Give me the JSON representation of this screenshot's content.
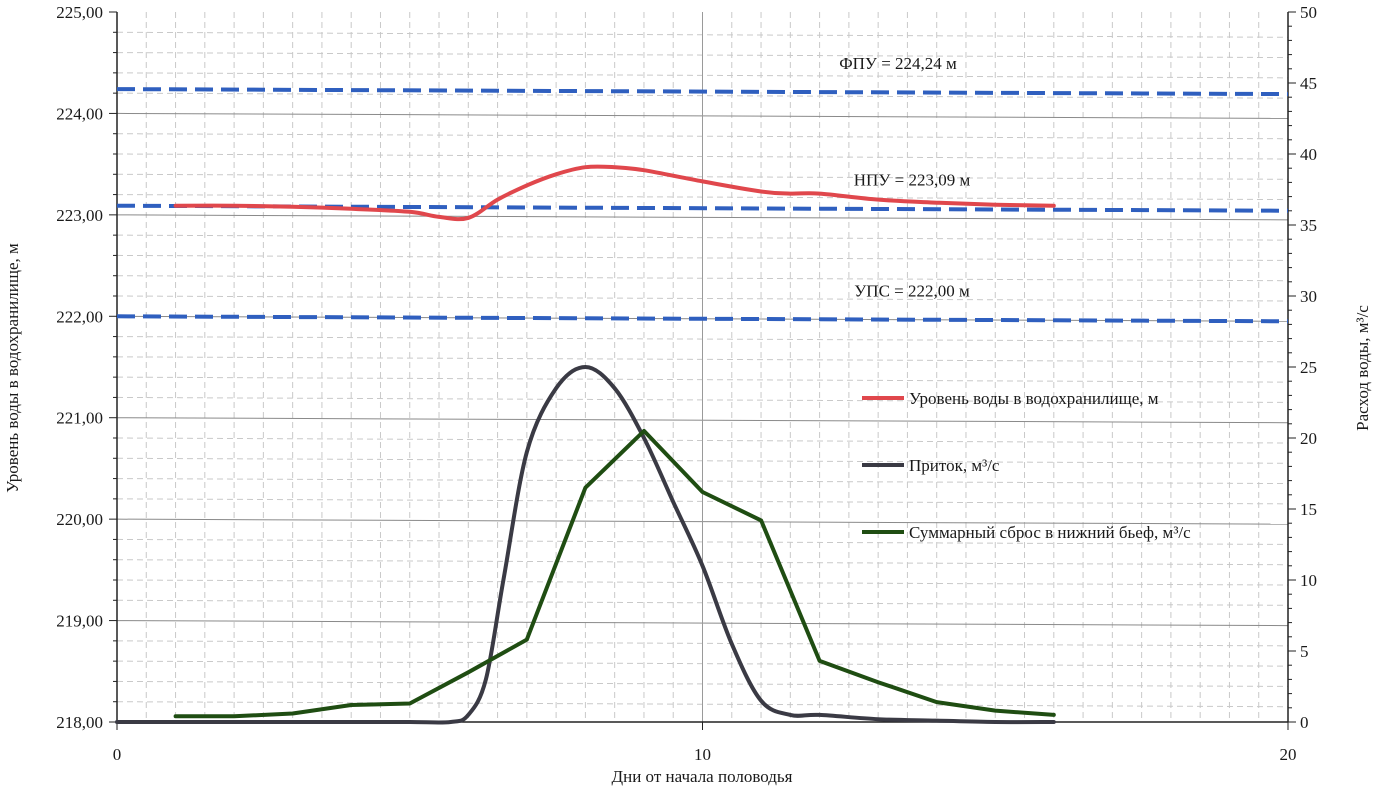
{
  "chart_data": {
    "type": "line",
    "xlabel": "Дни от начала половодья",
    "ylabel_left": "Уровень воды в водохранилище, м",
    "ylabel_right": "Расход воды, м³/с",
    "xlim": [
      0,
      20
    ],
    "ylim_left": [
      218,
      225
    ],
    "ylim_right": [
      0,
      50
    ],
    "x_ticks": [
      "0",
      "10",
      "20"
    ],
    "y_left_ticks": [
      "218,00",
      "219,00",
      "220,00",
      "221,00",
      "222,00",
      "223,00",
      "224,00",
      "225,00"
    ],
    "y_right_ticks": [
      "0",
      "5",
      "10",
      "15",
      "20",
      "25",
      "30",
      "35",
      "40",
      "45",
      "50"
    ],
    "grid": true,
    "legend_placement": "right",
    "reference_lines": [
      {
        "label": "ФПУ = 224,24 м",
        "value": 224.24,
        "color": "#2f5fbf"
      },
      {
        "label": "НПУ = 223,09 м",
        "value": 223.09,
        "color": "#2f5fbf"
      },
      {
        "label": "УПС = 222,00 м",
        "value": 222.0,
        "color": "#2f5fbf"
      }
    ],
    "series": [
      {
        "name": "Уровень воды в водохранилище, м",
        "axis": "left",
        "color": "#e0474c",
        "x": [
          1,
          2,
          3,
          4,
          5,
          5.5,
          6,
          6.5,
          7,
          7.5,
          8,
          8.5,
          9,
          10,
          11,
          11.5,
          12,
          13,
          14,
          15,
          16
        ],
        "y": [
          223.09,
          223.09,
          223.08,
          223.06,
          223.03,
          222.98,
          222.97,
          223.15,
          223.29,
          223.4,
          223.47,
          223.47,
          223.44,
          223.33,
          223.23,
          223.21,
          223.21,
          223.15,
          223.12,
          223.1,
          223.09
        ]
      },
      {
        "name": "Приток, м³/с",
        "axis": "right",
        "color": "#3a3a44",
        "x": [
          0,
          1,
          2,
          3,
          4,
          5,
          5.7,
          6,
          6.3,
          6.6,
          7,
          7.5,
          8,
          8.5,
          9,
          9.5,
          10,
          10.5,
          11,
          11.5,
          12,
          13,
          14,
          15,
          16
        ],
        "y": [
          0.0,
          0.0,
          0.0,
          0.0,
          0.0,
          0.0,
          0.0,
          0.5,
          3.0,
          10.0,
          19.0,
          23.5,
          25.0,
          23.5,
          20.0,
          15.5,
          11.0,
          5.5,
          1.5,
          0.5,
          0.5,
          0.2,
          0.1,
          0.0,
          0.0
        ]
      },
      {
        "name": "Суммарный сброс в нижний бьеф, м³/с",
        "axis": "right",
        "color": "#1f4d12",
        "x": [
          1,
          2,
          3,
          4,
          5,
          6,
          7,
          8,
          9,
          10,
          11,
          12,
          13,
          14,
          15,
          16
        ],
        "y": [
          0.4,
          0.4,
          0.6,
          1.2,
          1.3,
          3.5,
          5.8,
          16.5,
          20.5,
          16.2,
          14.2,
          4.3,
          2.8,
          1.4,
          0.8,
          0.5
        ]
      }
    ]
  }
}
